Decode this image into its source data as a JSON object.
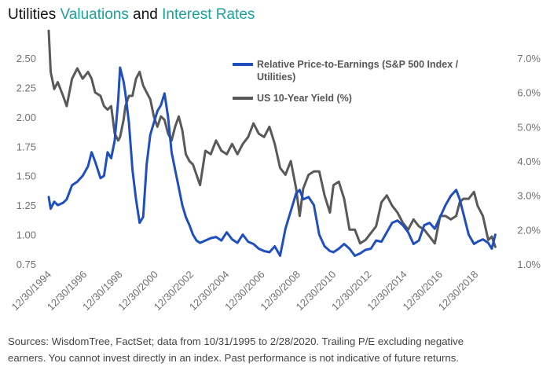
{
  "title": {
    "part1": "Utilities ",
    "part2": "Valuations",
    "part3": " and ",
    "part4": "Interest Rates",
    "accent_color": "#1ba39a"
  },
  "chart_data": {
    "type": "line",
    "title": "Utilities Valuations and Interest Rates",
    "x_tick_labels": [
      "12/30/1994",
      "12/30/1996",
      "12/30/1998",
      "12/30/2000",
      "12/30/2002",
      "12/30/2004",
      "12/30/2006",
      "12/30/2008",
      "12/30/2010",
      "12/30/2012",
      "12/30/2014",
      "12/30/2016",
      "12/30/2018"
    ],
    "xlim": [
      1994.99,
      2020.17
    ],
    "left_axis": {
      "ticks": [
        "0.75",
        "1.00",
        "1.25",
        "1.50",
        "1.75",
        "2.00",
        "2.25",
        "2.50"
      ],
      "ylim": [
        0.75,
        2.5
      ]
    },
    "right_axis": {
      "ticks": [
        "1.0%",
        "2.0%",
        "3.0%",
        "4.0%",
        "5.0%",
        "6.0%",
        "7.0%"
      ],
      "ylim": [
        1.0,
        7.0
      ]
    },
    "grid": false,
    "legend_position": "top-center",
    "series": [
      {
        "name": "Relative Price-to-Earnings (S&P 500 Index / Utilities)",
        "axis": "left",
        "color": "#1f4fbf",
        "x": [
          1994.99,
          1995.1,
          1995.3,
          1995.5,
          1995.8,
          1996.0,
          1996.3,
          1996.6,
          1996.9,
          1997.2,
          1997.4,
          1997.6,
          1997.9,
          1998.1,
          1998.3,
          1998.5,
          1998.7,
          1998.9,
          1999.0,
          1999.2,
          1999.3,
          1999.5,
          1999.7,
          1999.9,
          2000.1,
          2000.3,
          2000.5,
          2000.7,
          2000.9,
          2001.1,
          2001.3,
          2001.5,
          2001.7,
          2001.9,
          2002.1,
          2002.3,
          2002.5,
          2002.7,
          2002.9,
          2003.1,
          2003.3,
          2003.5,
          2003.8,
          2004.1,
          2004.4,
          2004.7,
          2005.0,
          2005.3,
          2005.6,
          2005.9,
          2006.2,
          2006.5,
          2006.8,
          2007.1,
          2007.4,
          2007.7,
          2008.0,
          2008.3,
          2008.6,
          2008.9,
          2009.1,
          2009.3,
          2009.6,
          2009.9,
          2010.2,
          2010.5,
          2010.8,
          2011.0,
          2011.3,
          2011.6,
          2011.9,
          2012.2,
          2012.5,
          2012.8,
          2013.1,
          2013.4,
          2013.7,
          2014.0,
          2014.3,
          2014.6,
          2014.9,
          2015.2,
          2015.5,
          2015.8,
          2016.1,
          2016.4,
          2016.7,
          2017.0,
          2017.3,
          2017.6,
          2017.9,
          2018.1,
          2018.3,
          2018.6,
          2018.9,
          2019.1,
          2019.4,
          2019.7,
          2019.9,
          2020.1
        ],
        "values": [
          1.32,
          1.22,
          1.28,
          1.25,
          1.27,
          1.3,
          1.42,
          1.45,
          1.5,
          1.58,
          1.7,
          1.62,
          1.48,
          1.5,
          1.7,
          1.65,
          1.8,
          2.15,
          2.42,
          2.3,
          2.2,
          1.95,
          1.55,
          1.3,
          1.1,
          1.15,
          1.6,
          1.85,
          1.95,
          2.05,
          2.1,
          2.2,
          2.0,
          1.7,
          1.55,
          1.4,
          1.25,
          1.15,
          1.08,
          1.0,
          0.95,
          0.93,
          0.95,
          0.97,
          0.98,
          0.95,
          1.02,
          0.96,
          0.93,
          1.0,
          0.94,
          0.92,
          0.88,
          0.86,
          0.85,
          0.9,
          0.82,
          1.05,
          1.2,
          1.35,
          1.38,
          1.3,
          1.32,
          1.25,
          1.0,
          0.9,
          0.86,
          0.85,
          0.88,
          0.92,
          0.88,
          0.82,
          0.84,
          0.87,
          0.88,
          0.95,
          0.94,
          1.02,
          1.1,
          1.12,
          1.08,
          1.02,
          0.92,
          0.95,
          1.08,
          1.1,
          1.05,
          1.15,
          1.25,
          1.33,
          1.38,
          1.3,
          1.18,
          1.0,
          0.92,
          0.94,
          0.96,
          0.93,
          0.88,
          1.0
        ]
      },
      {
        "name": "US 10-Year Yield (%)",
        "axis": "right",
        "color": "#595959",
        "x": [
          1994.99,
          1995.1,
          1995.3,
          1995.5,
          1995.8,
          1996.0,
          1996.3,
          1996.6,
          1996.9,
          1997.2,
          1997.4,
          1997.6,
          1997.9,
          1998.1,
          1998.3,
          1998.5,
          1998.7,
          1998.9,
          1999.0,
          1999.2,
          1999.3,
          1999.5,
          1999.7,
          1999.9,
          2000.1,
          2000.3,
          2000.5,
          2000.7,
          2000.9,
          2001.1,
          2001.3,
          2001.5,
          2001.7,
          2001.9,
          2002.1,
          2002.3,
          2002.5,
          2002.7,
          2002.9,
          2003.1,
          2003.3,
          2003.5,
          2003.8,
          2004.1,
          2004.4,
          2004.7,
          2005.0,
          2005.3,
          2005.6,
          2005.9,
          2006.2,
          2006.5,
          2006.8,
          2007.1,
          2007.4,
          2007.7,
          2008.0,
          2008.3,
          2008.6,
          2008.9,
          2009.1,
          2009.3,
          2009.6,
          2009.9,
          2010.2,
          2010.5,
          2010.8,
          2011.0,
          2011.3,
          2011.6,
          2011.9,
          2012.2,
          2012.5,
          2012.8,
          2013.1,
          2013.4,
          2013.7,
          2014.0,
          2014.3,
          2014.6,
          2014.9,
          2015.2,
          2015.5,
          2015.8,
          2016.1,
          2016.4,
          2016.7,
          2017.0,
          2017.3,
          2017.6,
          2017.9,
          2018.1,
          2018.3,
          2018.6,
          2018.9,
          2019.1,
          2019.4,
          2019.7,
          2019.9,
          2020.1
        ],
        "values": [
          7.8,
          6.6,
          6.1,
          6.3,
          5.9,
          5.6,
          6.4,
          6.7,
          6.4,
          6.6,
          6.4,
          6.0,
          5.9,
          5.6,
          5.5,
          5.6,
          4.8,
          4.6,
          4.7,
          5.2,
          5.6,
          5.9,
          5.9,
          6.4,
          6.6,
          6.2,
          6.0,
          5.8,
          5.3,
          5.0,
          5.3,
          5.2,
          4.8,
          4.6,
          5.0,
          5.3,
          4.9,
          4.2,
          4.0,
          3.9,
          3.6,
          3.3,
          4.3,
          4.2,
          4.6,
          4.3,
          4.2,
          4.5,
          4.2,
          4.5,
          4.7,
          5.1,
          4.8,
          4.7,
          5.0,
          4.5,
          3.8,
          3.6,
          4.0,
          3.2,
          2.4,
          3.2,
          3.6,
          3.7,
          3.7,
          3.0,
          2.5,
          3.3,
          3.4,
          2.9,
          2.0,
          2.0,
          1.6,
          1.7,
          1.9,
          2.1,
          2.8,
          3.0,
          2.7,
          2.5,
          2.2,
          2.0,
          2.3,
          2.1,
          2.0,
          1.8,
          1.6,
          2.4,
          2.4,
          2.3,
          2.4,
          2.8,
          2.9,
          2.9,
          3.1,
          2.7,
          2.4,
          1.7,
          1.8,
          1.5
        ]
      }
    ]
  },
  "legend": {
    "pe_line1": "Relative Price-to-Earnings (S&P 500 Index /",
    "pe_line2": "Utilities)",
    "yield": "US 10-Year Yield (%)"
  },
  "source": {
    "line1": "Sources: WisdomTree, FactSet; data from 10/31/1995 to 2/28/2020. Trailing P/E excluding negative",
    "line2": "earners. You cannot invest directly in an index. Past performance is not indicative of future returns."
  }
}
